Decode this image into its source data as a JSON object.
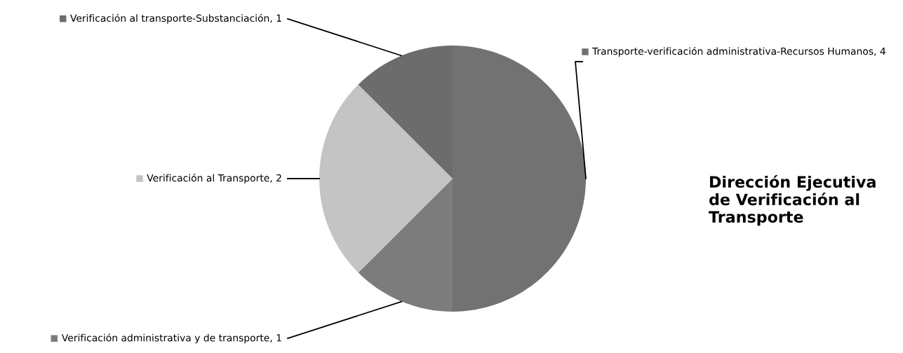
{
  "chart_data": {
    "type": "pie",
    "title": "Dirección Ejecutiva de Verificación al Transporte",
    "categories": [
      "Transporte-verificación administrativa-Recursos Humanos, 4",
      "Verificación administrativa y de transporte, 1",
      "Verificación al Transporte, 2",
      "Verificación al transporte-Substanciación, 1"
    ],
    "values": [
      50,
      12.5,
      25,
      12.5
    ],
    "colors": [
      "#727272",
      "#7c7c7c",
      "#c4c4c4",
      "#6c6c6c"
    ],
    "legend": "bottom right"
  }
}
